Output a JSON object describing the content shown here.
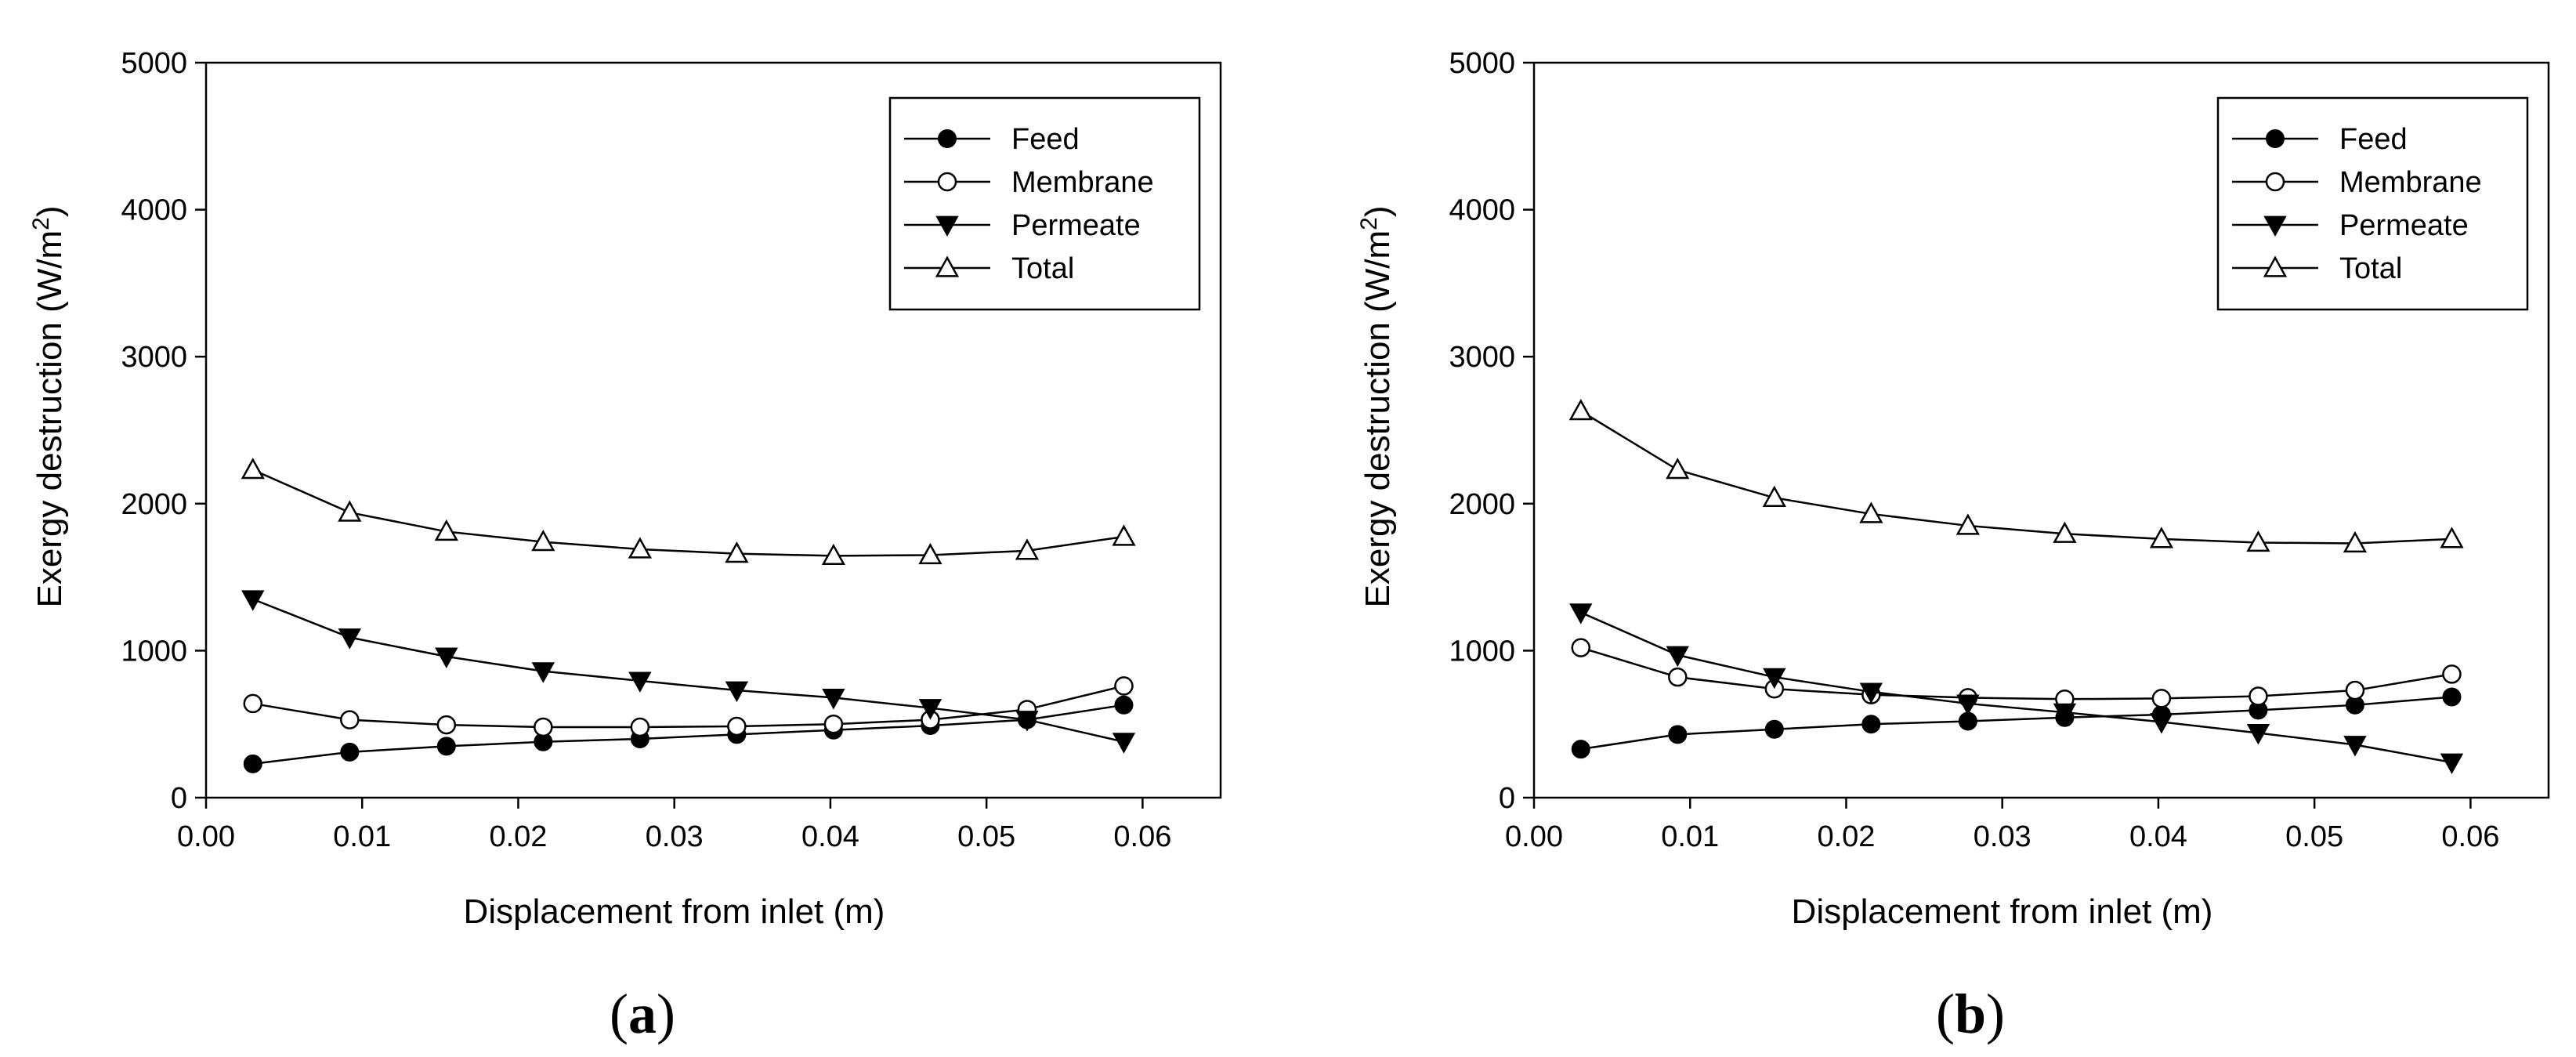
{
  "chart_data": [
    {
      "type": "line",
      "panel_label": "(a)",
      "xlabel": "Displacement from inlet (m)",
      "ylabel": "Exergy destruction (W/m²)",
      "xlim": [
        0.0,
        0.065
      ],
      "ylim": [
        0,
        5000
      ],
      "xticks": [
        "0.00",
        "0.01",
        "0.02",
        "0.03",
        "0.04",
        "0.05",
        "0.06"
      ],
      "yticks": [
        "0",
        "1000",
        "2000",
        "3000",
        "4000",
        "5000"
      ],
      "legend_position": "top-right",
      "x": [
        0.003,
        0.0092,
        0.0154,
        0.0216,
        0.0278,
        0.034,
        0.0402,
        0.0464,
        0.0526,
        0.0588
      ],
      "series": [
        {
          "name": "Feed",
          "marker": "filled-circle",
          "values": [
            230,
            310,
            350,
            380,
            400,
            430,
            460,
            490,
            530,
            630
          ]
        },
        {
          "name": "Membrane",
          "marker": "open-circle",
          "values": [
            640,
            530,
            495,
            480,
            480,
            485,
            500,
            530,
            600,
            760
          ]
        },
        {
          "name": "Permeate",
          "marker": "filled-triangle-down",
          "values": [
            1350,
            1090,
            960,
            860,
            795,
            730,
            680,
            610,
            530,
            380
          ]
        },
        {
          "name": "Total",
          "marker": "open-triangle-up",
          "values": [
            2230,
            1940,
            1810,
            1740,
            1690,
            1660,
            1645,
            1650,
            1680,
            1775
          ]
        }
      ]
    },
    {
      "type": "line",
      "panel_label": "(b)",
      "xlabel": "Displacement from inlet (m)",
      "ylabel": "Exergy destruction (W/m²)",
      "xlim": [
        0.0,
        0.065
      ],
      "ylim": [
        0,
        5000
      ],
      "xticks": [
        "0.00",
        "0.01",
        "0.02",
        "0.03",
        "0.04",
        "0.05",
        "0.06"
      ],
      "yticks": [
        "0",
        "1000",
        "2000",
        "3000",
        "4000",
        "5000"
      ],
      "legend_position": "top-right",
      "x": [
        0.003,
        0.0092,
        0.0154,
        0.0216,
        0.0278,
        0.034,
        0.0402,
        0.0464,
        0.0526,
        0.0588
      ],
      "series": [
        {
          "name": "Feed",
          "marker": "filled-circle",
          "values": [
            330,
            430,
            465,
            500,
            520,
            545,
            565,
            595,
            630,
            685
          ]
        },
        {
          "name": "Membrane",
          "marker": "open-circle",
          "values": [
            1020,
            820,
            740,
            700,
            680,
            670,
            675,
            690,
            730,
            840
          ]
        },
        {
          "name": "Permeate",
          "marker": "filled-triangle-down",
          "values": [
            1260,
            970,
            820,
            720,
            640,
            580,
            515,
            440,
            360,
            240
          ]
        },
        {
          "name": "Total",
          "marker": "open-triangle-up",
          "values": [
            2630,
            2230,
            2040,
            1930,
            1850,
            1795,
            1760,
            1735,
            1730,
            1760
          ]
        }
      ]
    }
  ]
}
